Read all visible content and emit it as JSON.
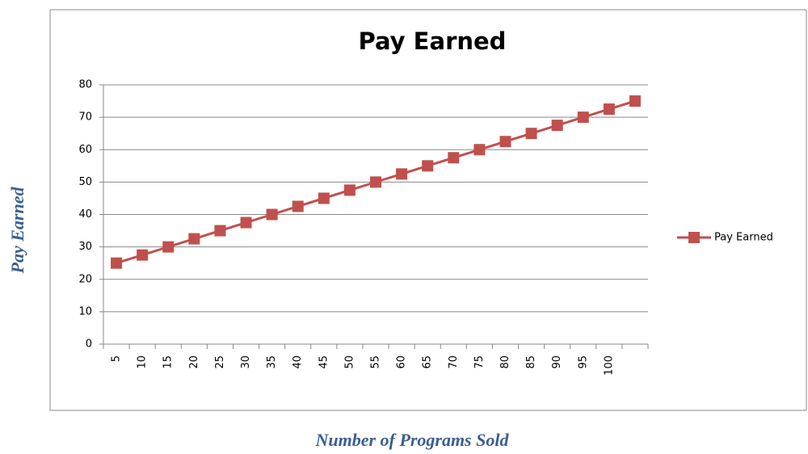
{
  "chart_data": {
    "type": "line",
    "title": "Pay Earned",
    "x_label": "Number of Programs Sold",
    "y_label": "Pay Earned",
    "categories": [
      5,
      10,
      15,
      20,
      25,
      30,
      35,
      40,
      45,
      50,
      55,
      60,
      65,
      70,
      75,
      80,
      85,
      90,
      95,
      100,
      null
    ],
    "series": [
      {
        "name": "Pay Earned",
        "color": "#c0504d",
        "values": [
          25,
          27.5,
          30,
          32.5,
          35,
          37.5,
          40,
          42.5,
          45,
          47.5,
          50,
          52.5,
          55,
          57.5,
          60,
          62.5,
          65,
          67.5,
          70,
          72.5,
          75
        ]
      }
    ],
    "ylim": [
      0,
      80
    ],
    "yticks": [
      0,
      10,
      20,
      30,
      40,
      50,
      60,
      70,
      80
    ],
    "grid": true,
    "legend": "right"
  }
}
